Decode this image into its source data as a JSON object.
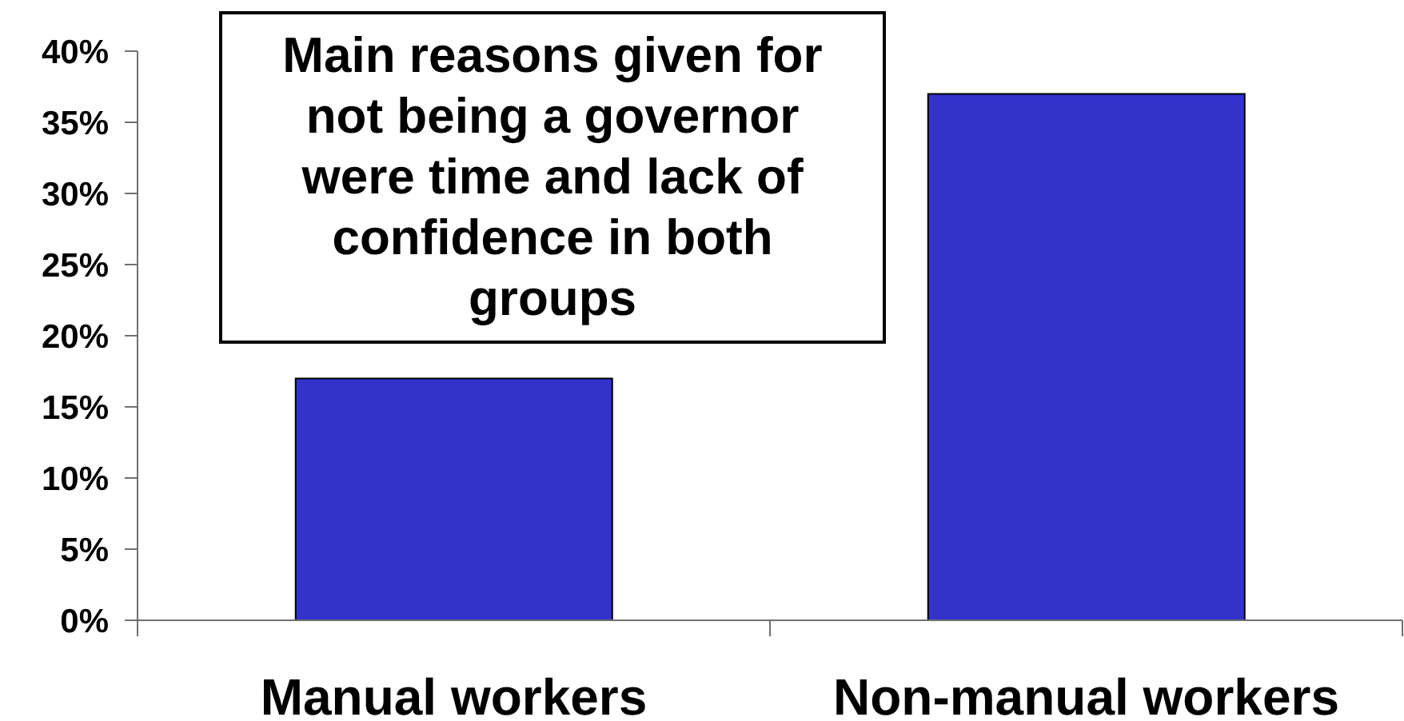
{
  "chart_data": {
    "type": "bar",
    "categories": [
      "Manual workers",
      "Non-manual workers"
    ],
    "values": [
      17,
      37
    ],
    "color": "#3333cc",
    "ylim": [
      0,
      40
    ],
    "yticks": [
      {
        "value": 0,
        "label": "0%"
      },
      {
        "value": 5,
        "label": "5%"
      },
      {
        "value": 10,
        "label": "10%"
      },
      {
        "value": 15,
        "label": "15%"
      },
      {
        "value": 20,
        "label": "20%"
      },
      {
        "value": 25,
        "label": "25%"
      },
      {
        "value": 30,
        "label": "30%"
      },
      {
        "value": 35,
        "label": "35%"
      },
      {
        "value": 40,
        "label": "40%"
      }
    ],
    "annotations": [
      "Main reasons given for not being a governor were time and lack of confidence in both groups"
    ]
  }
}
